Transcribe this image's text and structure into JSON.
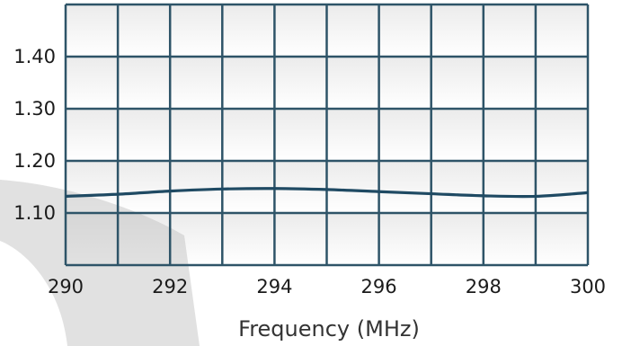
{
  "chart_data": {
    "type": "line",
    "title": "",
    "xlabel": "Frequency (MHz)",
    "ylabel": "",
    "xlim": [
      290,
      300
    ],
    "ylim": [
      1.0,
      1.5
    ],
    "grid": true,
    "legend": "none",
    "x_ticks": [
      290,
      291,
      292,
      293,
      294,
      295,
      296,
      297,
      298,
      299,
      300
    ],
    "x_tick_labels": [
      {
        "value": 290,
        "label": "290"
      },
      {
        "value": 292,
        "label": "292"
      },
      {
        "value": 294,
        "label": "294"
      },
      {
        "value": 296,
        "label": "296"
      },
      {
        "value": 298,
        "label": "298"
      },
      {
        "value": 300,
        "label": "300"
      }
    ],
    "y_ticks": [
      1.1,
      1.2,
      1.3,
      1.4
    ],
    "y_tick_labels": [
      {
        "value": 1.1,
        "label": "1.10"
      },
      {
        "value": 1.2,
        "label": "1.20"
      },
      {
        "value": 1.3,
        "label": "1.30"
      },
      {
        "value": 1.4,
        "label": "1.40"
      }
    ],
    "series": [
      {
        "color": "#1f4a63",
        "x": [
          290,
          291,
          292,
          293,
          294,
          295,
          296,
          297,
          298,
          299,
          300
        ],
        "y": [
          1.132,
          1.136,
          1.142,
          1.146,
          1.147,
          1.145,
          1.141,
          1.137,
          1.133,
          1.132,
          1.139
        ]
      }
    ],
    "colors": {
      "grid": "#2e5468",
      "frame": "#2e5468"
    }
  }
}
